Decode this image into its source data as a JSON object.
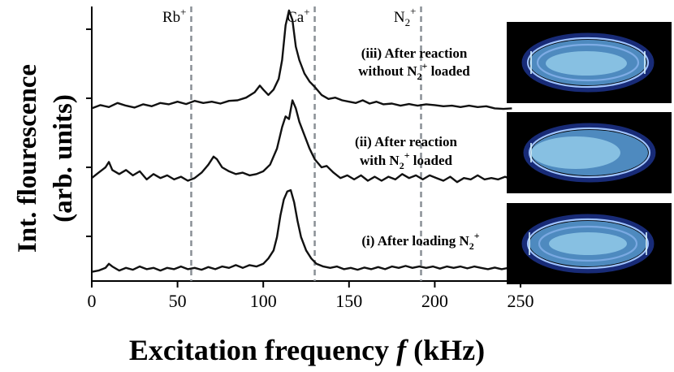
{
  "chart_data": {
    "type": "line",
    "xlabel_prefix": "Excitation frequency ",
    "xlabel_var": "f",
    "xlabel_suffix": " (kHz)",
    "ylabel_line1": "Int. flourescence",
    "ylabel_line2": "(arb. units)",
    "xlim": [
      0,
      250
    ],
    "xticks": [
      0,
      50,
      100,
      150,
      200,
      250
    ],
    "ylim": [
      0,
      100
    ],
    "reference_lines": [
      {
        "name": "rb",
        "base": "Rb",
        "sub": "",
        "sup": "+",
        "x": 58
      },
      {
        "name": "ca",
        "base": "Ca",
        "sub": "",
        "sup": "+",
        "x": 130
      },
      {
        "name": "n2",
        "base": "N",
        "sub": "2",
        "sup": "+",
        "x": 192
      }
    ],
    "series": [
      {
        "name": "(iii)",
        "label_line1": "(iii) After reaction",
        "label_line2_pre": "without N",
        "label_line2_sub": "2",
        "label_line2_sup": "+",
        "label_line2_post": " loaded",
        "baseline": 60,
        "points": [
          [
            0,
            62
          ],
          [
            5,
            63.2
          ],
          [
            10,
            62.5
          ],
          [
            15,
            64
          ],
          [
            20,
            63
          ],
          [
            25,
            62.3
          ],
          [
            30,
            63.5
          ],
          [
            35,
            62.8
          ],
          [
            40,
            64
          ],
          [
            45,
            63.5
          ],
          [
            50,
            64.5
          ],
          [
            55,
            63.6
          ],
          [
            60,
            64.8
          ],
          [
            65,
            64
          ],
          [
            70,
            64.5
          ],
          [
            75,
            63.8
          ],
          [
            80,
            64.8
          ],
          [
            85,
            65
          ],
          [
            90,
            66
          ],
          [
            95,
            68
          ],
          [
            98,
            70.5
          ],
          [
            100,
            69
          ],
          [
            103,
            67
          ],
          [
            106,
            69
          ],
          [
            109,
            73
          ],
          [
            111,
            80
          ],
          [
            113,
            93
          ],
          [
            115,
            98.5
          ],
          [
            117,
            95
          ],
          [
            119,
            85
          ],
          [
            121,
            80
          ],
          [
            124,
            75
          ],
          [
            127,
            72
          ],
          [
            130,
            70
          ],
          [
            134,
            67
          ],
          [
            138,
            65.5
          ],
          [
            142,
            66
          ],
          [
            146,
            65
          ],
          [
            150,
            64.5
          ],
          [
            154,
            64
          ],
          [
            158,
            65
          ],
          [
            162,
            63.8
          ],
          [
            166,
            64.5
          ],
          [
            170,
            63.5
          ],
          [
            175,
            63.8
          ],
          [
            180,
            63
          ],
          [
            185,
            63.6
          ],
          [
            190,
            63
          ],
          [
            195,
            63.5
          ],
          [
            200,
            63.2
          ],
          [
            205,
            62.8
          ],
          [
            210,
            63
          ],
          [
            215,
            62.5
          ],
          [
            220,
            63
          ],
          [
            225,
            62.5
          ],
          [
            230,
            62.8
          ],
          [
            235,
            62
          ],
          [
            240,
            61.8
          ],
          [
            245,
            62
          ]
        ]
      },
      {
        "name": "(ii)",
        "label_line1": "(ii) After reaction",
        "label_line2_pre": "with N",
        "label_line2_sub": "2",
        "label_line2_sup": "+",
        "label_line2_post": " loaded",
        "baseline": 35,
        "points": [
          [
            0,
            36
          ],
          [
            4,
            38
          ],
          [
            8,
            40
          ],
          [
            10,
            42
          ],
          [
            12,
            39
          ],
          [
            16,
            37.5
          ],
          [
            20,
            39
          ],
          [
            24,
            37
          ],
          [
            28,
            38.5
          ],
          [
            32,
            35.5
          ],
          [
            36,
            37.5
          ],
          [
            40,
            36
          ],
          [
            44,
            37
          ],
          [
            48,
            35.5
          ],
          [
            52,
            36.5
          ],
          [
            56,
            35
          ],
          [
            60,
            36
          ],
          [
            64,
            38
          ],
          [
            68,
            41
          ],
          [
            71,
            44
          ],
          [
            73,
            43
          ],
          [
            76,
            40
          ],
          [
            80,
            38.5
          ],
          [
            84,
            37.5
          ],
          [
            88,
            38
          ],
          [
            92,
            37
          ],
          [
            96,
            37.5
          ],
          [
            100,
            38.5
          ],
          [
            104,
            41
          ],
          [
            108,
            47
          ],
          [
            111,
            55
          ],
          [
            113,
            59
          ],
          [
            115,
            58
          ],
          [
            117,
            65
          ],
          [
            119,
            62
          ],
          [
            121,
            57
          ],
          [
            124,
            52
          ],
          [
            127,
            47
          ],
          [
            130,
            43
          ],
          [
            134,
            40
          ],
          [
            137,
            40.5
          ],
          [
            141,
            38
          ],
          [
            145,
            36
          ],
          [
            149,
            37
          ],
          [
            153,
            35.5
          ],
          [
            157,
            37
          ],
          [
            161,
            35
          ],
          [
            165,
            36.5
          ],
          [
            169,
            35
          ],
          [
            173,
            36.5
          ],
          [
            177,
            35.5
          ],
          [
            181,
            37.5
          ],
          [
            185,
            36
          ],
          [
            189,
            37
          ],
          [
            193,
            35.5
          ],
          [
            197,
            37
          ],
          [
            201,
            36
          ],
          [
            205,
            35
          ],
          [
            209,
            36.5
          ],
          [
            213,
            34.5
          ],
          [
            217,
            36
          ],
          [
            221,
            35.5
          ],
          [
            225,
            37
          ],
          [
            229,
            35.5
          ],
          [
            233,
            36
          ],
          [
            237,
            35.5
          ],
          [
            241,
            36.5
          ],
          [
            245,
            35.5
          ]
        ]
      },
      {
        "name": "(i)",
        "label_line1_pre": "(i) After loading N",
        "label_line1_sub": "2",
        "label_line1_sup": "+",
        "baseline": 0,
        "points": [
          [
            0,
            1
          ],
          [
            4,
            1.5
          ],
          [
            8,
            2.5
          ],
          [
            10,
            4
          ],
          [
            12,
            3
          ],
          [
            16,
            1.5
          ],
          [
            20,
            2.5
          ],
          [
            24,
            1.8
          ],
          [
            28,
            3
          ],
          [
            32,
            2
          ],
          [
            36,
            2.5
          ],
          [
            40,
            1.5
          ],
          [
            44,
            2.5
          ],
          [
            48,
            2
          ],
          [
            52,
            3
          ],
          [
            56,
            2
          ],
          [
            60,
            2.5
          ],
          [
            64,
            1.8
          ],
          [
            68,
            2.8
          ],
          [
            72,
            2
          ],
          [
            76,
            3
          ],
          [
            80,
            2.5
          ],
          [
            84,
            3.5
          ],
          [
            88,
            2.5
          ],
          [
            92,
            3.5
          ],
          [
            96,
            3
          ],
          [
            100,
            4
          ],
          [
            103,
            6
          ],
          [
            106,
            9
          ],
          [
            108,
            14
          ],
          [
            110,
            22
          ],
          [
            112,
            28
          ],
          [
            114,
            31
          ],
          [
            116,
            31.5
          ],
          [
            118,
            27
          ],
          [
            120,
            20
          ],
          [
            122,
            14
          ],
          [
            125,
            9
          ],
          [
            128,
            6
          ],
          [
            131,
            4
          ],
          [
            135,
            3
          ],
          [
            139,
            2.5
          ],
          [
            143,
            3
          ],
          [
            147,
            2
          ],
          [
            151,
            2.5
          ],
          [
            155,
            1.8
          ],
          [
            159,
            2.6
          ],
          [
            163,
            2
          ],
          [
            167,
            2.8
          ],
          [
            171,
            2
          ],
          [
            175,
            3
          ],
          [
            179,
            2.5
          ],
          [
            183,
            3.2
          ],
          [
            187,
            2.5
          ],
          [
            191,
            3
          ],
          [
            195,
            2.5
          ],
          [
            199,
            3
          ],
          [
            203,
            2.2
          ],
          [
            207,
            3
          ],
          [
            211,
            2.5
          ],
          [
            215,
            3
          ],
          [
            219,
            2.3
          ],
          [
            223,
            3
          ],
          [
            227,
            2.5
          ],
          [
            231,
            2
          ],
          [
            235,
            2.6
          ],
          [
            239,
            2
          ],
          [
            243,
            2.5
          ],
          [
            245,
            2
          ]
        ]
      }
    ],
    "images": [
      {
        "name": "iii"
      },
      {
        "name": "ii"
      },
      {
        "name": "i"
      }
    ]
  }
}
